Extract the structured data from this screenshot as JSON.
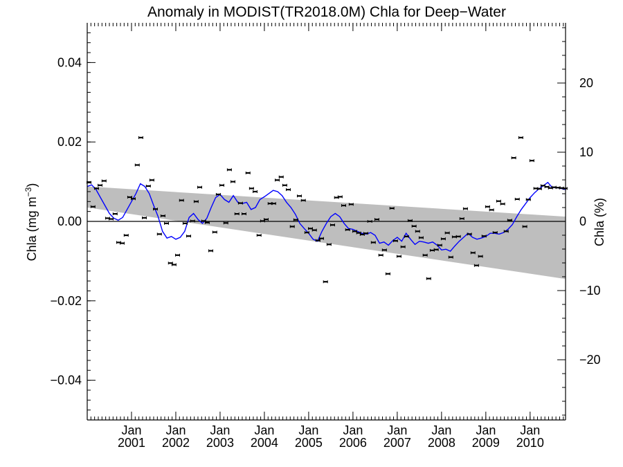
{
  "chart_data": {
    "type": "line",
    "title": "Anomaly in MODIST(TR2018.0M) Chla for Deep−Water",
    "ylabel_left": "Chla (mg m",
    "ylabel_left_sup": "−3",
    "ylabel_left_close": ")",
    "ylabel_right": "Chla (%)",
    "x_range": [
      2000.0,
      2010.8
    ],
    "ylim_left": [
      -0.05,
      0.05
    ],
    "ylim_right": [
      -28.7,
      28.7
    ],
    "x_ticks": [
      {
        "pos": 2001.0,
        "line1": "Jan",
        "line2": "2001"
      },
      {
        "pos": 2002.0,
        "line1": "Jan",
        "line2": "2002"
      },
      {
        "pos": 2003.0,
        "line1": "Jan",
        "line2": "2003"
      },
      {
        "pos": 2004.0,
        "line1": "Jan",
        "line2": "2004"
      },
      {
        "pos": 2005.0,
        "line1": "Jan",
        "line2": "2005"
      },
      {
        "pos": 2006.0,
        "line1": "Jan",
        "line2": "2006"
      },
      {
        "pos": 2007.0,
        "line1": "Jan",
        "line2": "2007"
      },
      {
        "pos": 2008.0,
        "line1": "Jan",
        "line2": "2008"
      },
      {
        "pos": 2009.0,
        "line1": "Jan",
        "line2": "2009"
      },
      {
        "pos": 2010.0,
        "line1": "Jan",
        "line2": "2010"
      }
    ],
    "y_ticks_left": [
      {
        "value": 0.04,
        "label": "0.04"
      },
      {
        "value": 0.02,
        "label": "0.02"
      },
      {
        "value": 0.0,
        "label": "0.00"
      },
      {
        "value": -0.02,
        "label": "−0.02"
      },
      {
        "value": -0.04,
        "label": "−0.04"
      }
    ],
    "y_ticks_right": [
      {
        "value": 20,
        "label": "20"
      },
      {
        "value": 10,
        "label": "10"
      },
      {
        "value": 0,
        "label": "0"
      },
      {
        "value": -10,
        "label": "−10"
      },
      {
        "value": -20,
        "label": "−20"
      }
    ],
    "trend_band": {
      "x": [
        2000.0,
        2010.8
      ],
      "upper": [
        0.0088,
        0.0012
      ],
      "lower": [
        0.0035,
        -0.0145
      ]
    },
    "zero_line": 0.0,
    "monthly_points": {
      "x": [
        2000.04,
        2000.13,
        2000.21,
        2000.29,
        2000.38,
        2000.46,
        2000.54,
        2000.63,
        2000.71,
        2000.79,
        2000.88,
        2000.96,
        2001.04,
        2001.13,
        2001.21,
        2001.29,
        2001.38,
        2001.46,
        2001.54,
        2001.63,
        2001.71,
        2001.79,
        2001.88,
        2001.96,
        2002.04,
        2002.13,
        2002.21,
        2002.29,
        2002.38,
        2002.46,
        2002.54,
        2002.63,
        2002.71,
        2002.79,
        2002.88,
        2002.96,
        2003.04,
        2003.13,
        2003.21,
        2003.29,
        2003.38,
        2003.46,
        2003.54,
        2003.63,
        2003.71,
        2003.79,
        2003.88,
        2003.96,
        2004.04,
        2004.13,
        2004.21,
        2004.29,
        2004.38,
        2004.46,
        2004.54,
        2004.63,
        2004.71,
        2004.79,
        2004.88,
        2004.96,
        2005.04,
        2005.13,
        2005.21,
        2005.29,
        2005.38,
        2005.46,
        2005.54,
        2005.63,
        2005.71,
        2005.79,
        2005.88,
        2005.96,
        2006.04,
        2006.13,
        2006.21,
        2006.29,
        2006.38,
        2006.46,
        2006.54,
        2006.63,
        2006.71,
        2006.79,
        2006.88,
        2006.96,
        2007.04,
        2007.13,
        2007.21,
        2007.29,
        2007.38,
        2007.46,
        2007.54,
        2007.63,
        2007.71,
        2007.79,
        2007.88,
        2007.96,
        2008.04,
        2008.13,
        2008.21,
        2008.29,
        2008.38,
        2008.46,
        2008.54,
        2008.63,
        2008.71,
        2008.79,
        2008.88,
        2008.96,
        2009.04,
        2009.13,
        2009.21,
        2009.29,
        2009.38,
        2009.46,
        2009.54,
        2009.63,
        2009.71,
        2009.79,
        2009.88,
        2009.96,
        2010.04,
        2010.13,
        2010.21,
        2010.29,
        2010.38,
        2010.46,
        2010.54,
        2010.63,
        2010.71,
        2010.79
      ],
      "y": [
        0.0098,
        0.0037,
        0.0083,
        0.0091,
        0.0102,
        0.0008,
        0.0006,
        0.0019,
        -0.0053,
        -0.0055,
        -0.0035,
        0.0061,
        0.0057,
        0.0142,
        0.0211,
        0.0009,
        0.0089,
        0.0104,
        0.0031,
        -0.0032,
        0.0014,
        -0.0005,
        -0.0105,
        -0.0109,
        -0.0085,
        0.0053,
        -0.0005,
        -0.0037,
        0.0001,
        0.005,
        0.0086,
        0.0001,
        -0.0003,
        -0.0074,
        -0.0027,
        0.0068,
        0.0091,
        -0.0004,
        0.013,
        0.01,
        0.0019,
        0.0046,
        0.0019,
        0.0122,
        0.0083,
        0.0075,
        -0.0035,
        0.0001,
        0.0005,
        0.0045,
        0.0045,
        0.0104,
        0.0112,
        0.0091,
        0.008,
        -0.0013,
        0.0004,
        0.0064,
        0.0053,
        -0.0028,
        -0.0018,
        -0.0022,
        -0.0048,
        -0.0043,
        -0.0152,
        -0.0058,
        -0.0009,
        0.006,
        0.0062,
        0.004,
        -0.0021,
        0.0043,
        -0.0025,
        -0.0029,
        -0.0033,
        -0.003,
        0.0,
        -0.0053,
        0.0005,
        -0.0085,
        -0.0072,
        -0.0132,
        0.0033,
        -0.0049,
        -0.0088,
        -0.0064,
        -0.0038,
        0.0002,
        -0.0012,
        -0.0025,
        -0.0041,
        -0.0085,
        -0.0144,
        -0.0073,
        -0.0071,
        -0.006,
        -0.0044,
        -0.0029,
        -0.009,
        -0.0039,
        -0.0038,
        0.0007,
        0.0032,
        -0.0032,
        -0.0079,
        -0.0111,
        -0.0088,
        -0.0037,
        0.0037,
        0.0029,
        -0.0028,
        0.0051,
        0.0044,
        -0.0025,
        0.0003,
        0.016,
        0.0056,
        0.0211,
        -0.0013,
        0.0055,
        0.0153,
        0.0083,
        0.0082,
        0.009,
        0.0087,
        0.0084,
        0.0086,
        0.0085,
        0.0084,
        0.0083
      ]
    },
    "running_mean": {
      "color": "#0000ff",
      "x": [
        2000.0,
        2000.1,
        2000.2,
        2000.3,
        2000.4,
        2000.5,
        2000.6,
        2000.7,
        2000.8,
        2000.9,
        2001.0,
        2001.1,
        2001.2,
        2001.3,
        2001.4,
        2001.5,
        2001.6,
        2001.7,
        2001.8,
        2001.9,
        2002.0,
        2002.1,
        2002.2,
        2002.3,
        2002.4,
        2002.5,
        2002.6,
        2002.7,
        2002.8,
        2002.9,
        2003.0,
        2003.1,
        2003.2,
        2003.3,
        2003.4,
        2003.5,
        2003.6,
        2003.7,
        2003.8,
        2003.9,
        2004.0,
        2004.1,
        2004.2,
        2004.3,
        2004.4,
        2004.5,
        2004.6,
        2004.7,
        2004.8,
        2004.9,
        2005.0,
        2005.1,
        2005.2,
        2005.3,
        2005.4,
        2005.5,
        2005.6,
        2005.7,
        2005.8,
        2005.9,
        2006.0,
        2006.1,
        2006.2,
        2006.3,
        2006.4,
        2006.5,
        2006.6,
        2006.7,
        2006.8,
        2006.9,
        2007.0,
        2007.1,
        2007.2,
        2007.3,
        2007.4,
        2007.5,
        2007.6,
        2007.7,
        2007.8,
        2007.9,
        2008.0,
        2008.1,
        2008.2,
        2008.3,
        2008.4,
        2008.5,
        2008.6,
        2008.7,
        2008.8,
        2008.9,
        2009.0,
        2009.1,
        2009.2,
        2009.3,
        2009.4,
        2009.5,
        2009.6,
        2009.7,
        2009.8,
        2009.9,
        2010.0,
        2010.1,
        2010.2,
        2010.3,
        2010.4,
        2010.5,
        2010.6,
        2010.7,
        2010.8
      ],
      "y": [
        0.0088,
        0.0092,
        0.008,
        0.006,
        0.004,
        0.002,
        0.0008,
        0.0003,
        0.001,
        0.003,
        0.005,
        0.007,
        0.0095,
        0.0088,
        0.007,
        0.004,
        0.0012,
        -0.0025,
        -0.0042,
        -0.0038,
        -0.0045,
        -0.004,
        -0.0025,
        0.001,
        0.002,
        0.0005,
        -0.0005,
        0.0008,
        0.0035,
        0.006,
        0.0068,
        0.0055,
        0.0048,
        0.0065,
        0.0048,
        0.0045,
        0.0048,
        0.003,
        0.0035,
        0.0055,
        0.0062,
        0.007,
        0.0078,
        0.0075,
        0.0065,
        0.0048,
        0.0035,
        0.0018,
        -0.0005,
        -0.0018,
        -0.003,
        -0.0045,
        -0.005,
        -0.0025,
        -0.0005,
        0.0012,
        0.002,
        0.0012,
        -0.0005,
        -0.0018,
        -0.002,
        -0.0025,
        -0.003,
        -0.0032,
        -0.0028,
        -0.0035,
        -0.0055,
        -0.0052,
        -0.006,
        -0.0048,
        -0.004,
        -0.005,
        -0.003,
        -0.0045,
        -0.0058,
        -0.005,
        -0.0052,
        -0.0055,
        -0.0052,
        -0.006,
        -0.0072,
        -0.007,
        -0.0075,
        -0.0062,
        -0.005,
        -0.004,
        -0.003,
        -0.004,
        -0.0045,
        -0.0042,
        -0.0038,
        -0.003,
        -0.003,
        -0.0032,
        -0.0028,
        -0.002,
        -0.0008,
        0.0012,
        0.003,
        0.0045,
        0.006,
        0.0072,
        0.0082,
        0.009,
        0.0098,
        0.0085,
        0.0085,
        0.0083,
        0.008
      ]
    }
  }
}
